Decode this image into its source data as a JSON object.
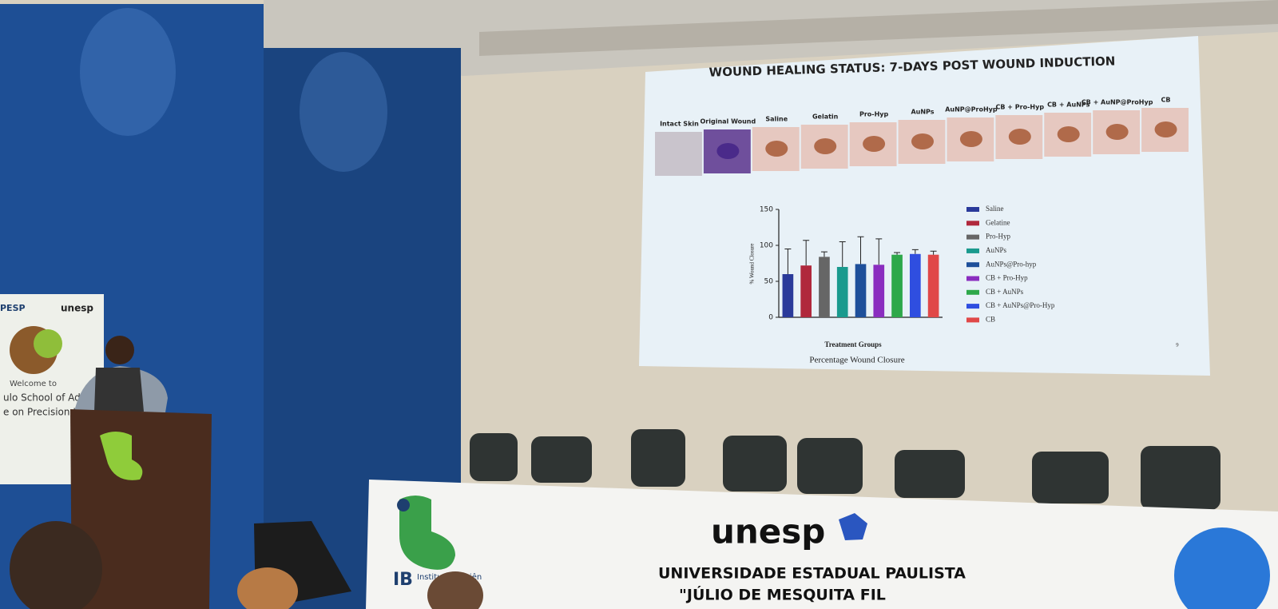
{
  "slide": {
    "title": "WOUND HEALING STATUS: 7-DAYS  POST  WOUND INDUCTION",
    "panel_labels": [
      "Intact Skin",
      "Original Wound",
      "Saline",
      "Gelatin",
      "Pro-Hyp",
      "AuNPs",
      "AuNP@ProHyp",
      "CB + Pro-Hyp",
      "CB + AuNPs",
      "CB + AuNP@ProHyp",
      "CB"
    ],
    "page_number": "9"
  },
  "chart_data": {
    "type": "bar",
    "title": "Percentage Wound Closure",
    "x_label": "Treatment Groups",
    "y_label": "% Wound Closure",
    "categories": [
      "Saline",
      "Gelatine",
      "Pro-Hyp",
      "AuNPs",
      "AuNPs@Pro-hyp",
      "CB + Pro-Hyp",
      "CB + AuNPs",
      "CB + AuNPs@Pro-Hyp",
      "CB"
    ],
    "values": [
      60,
      72,
      84,
      70,
      74,
      73,
      87,
      88,
      87
    ],
    "errors": [
      35,
      35,
      7,
      35,
      38,
      36,
      3,
      6,
      5
    ],
    "colors": [
      "#2a3a9a",
      "#b0283c",
      "#666666",
      "#1a9a8e",
      "#1e4f9a",
      "#8a2dbf",
      "#2ea84a",
      "#2f4ee0",
      "#e04848"
    ],
    "ylim": [
      0,
      150
    ],
    "yticks": [
      0,
      50,
      100,
      150
    ],
    "legend": "right"
  },
  "venue": {
    "banner_logo": "unesp",
    "banner_line1": "UNIVERSIDADE ESTADUAL PAULISTA",
    "banner_line2": "\"JÚLIO DE MESQUITA FIL",
    "ib_logo": "IB",
    "ib_text": "Instituto Biociên",
    "poster_top_left": "PESP",
    "poster_top_right": "unesp",
    "poster_welcome": "Welcome to",
    "poster_line1": "ulo School of Adva",
    "poster_line2": "e on Precision He"
  }
}
